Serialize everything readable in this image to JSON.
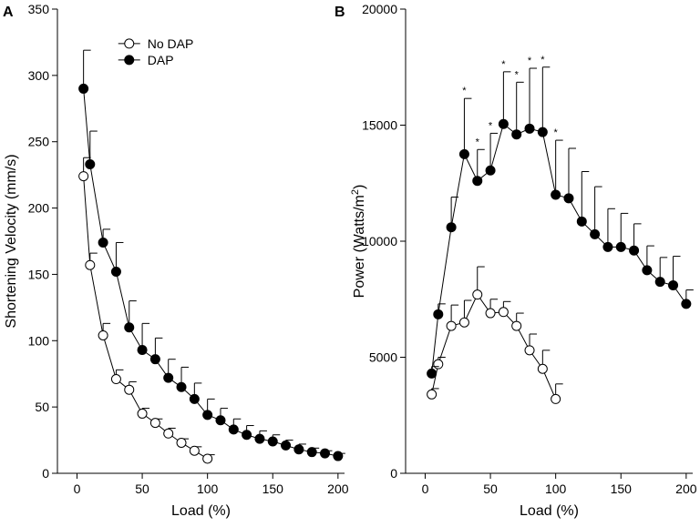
{
  "chart_data": [
    {
      "panel": "A",
      "type": "line",
      "xlabel": "Load (%)",
      "ylabel": "Shortening Velocity (mm/s)",
      "xlim": [
        -15,
        205
      ],
      "ylim": [
        0,
        350
      ],
      "xticks": [
        0,
        50,
        100,
        150,
        200
      ],
      "yticks": [
        0,
        50,
        100,
        150,
        200,
        250,
        300,
        350
      ],
      "legend": {
        "placement": "top-right",
        "entries": [
          "No DAP",
          "DAP"
        ]
      },
      "series": [
        {
          "name": "No DAP",
          "marker": "open-circle",
          "x": [
            5,
            10,
            20,
            30,
            40,
            50,
            60,
            70,
            80,
            90,
            100
          ],
          "y": [
            224,
            157,
            104,
            71,
            63,
            45,
            38,
            30,
            23,
            17,
            11
          ],
          "error": [
            14,
            9,
            9,
            7,
            6,
            4,
            3,
            4,
            3,
            3,
            3
          ]
        },
        {
          "name": "DAP",
          "marker": "filled-circle",
          "x": [
            5,
            10,
            20,
            30,
            40,
            50,
            60,
            70,
            80,
            90,
            100,
            110,
            120,
            130,
            140,
            150,
            160,
            170,
            180,
            190,
            200
          ],
          "y": [
            290,
            233,
            174,
            152,
            110,
            93,
            86,
            72,
            65,
            56,
            44,
            40,
            33,
            29,
            26,
            24,
            21,
            18,
            16,
            15,
            13
          ],
          "error": [
            29,
            25,
            10,
            22,
            20,
            20,
            16,
            14,
            15,
            12,
            12,
            9,
            8,
            7,
            6,
            5,
            4,
            4,
            3,
            2,
            2
          ]
        }
      ]
    },
    {
      "panel": "B",
      "type": "line",
      "xlabel": "Load (%)",
      "ylabel": "Power (Watts/m",
      "ylabel_superscript": "2",
      "ylabel_close": ")",
      "xlim": [
        -15,
        205
      ],
      "ylim": [
        0,
        20000
      ],
      "xticks": [
        0,
        50,
        100,
        150,
        200
      ],
      "yticks": [
        0,
        5000,
        10000,
        15000,
        20000
      ],
      "significance_marker": "*",
      "series": [
        {
          "name": "No DAP",
          "marker": "open-circle",
          "x": [
            5,
            10,
            20,
            30,
            40,
            50,
            60,
            70,
            80,
            90,
            100
          ],
          "y": [
            3400,
            4700,
            6350,
            6500,
            7700,
            6900,
            6950,
            6350,
            5300,
            4500,
            3200
          ],
          "error": [
            250,
            300,
            900,
            950,
            1200,
            600,
            450,
            550,
            700,
            800,
            650
          ]
        },
        {
          "name": "DAP",
          "marker": "filled-circle",
          "x": [
            5,
            10,
            20,
            30,
            40,
            50,
            60,
            70,
            80,
            90,
            100,
            110,
            120,
            130,
            140,
            150,
            160,
            170,
            180,
            190,
            200
          ],
          "y": [
            4300,
            6850,
            10600,
            13750,
            12600,
            13050,
            15050,
            14600,
            14850,
            14700,
            12000,
            11850,
            10850,
            10300,
            9750,
            9750,
            9600,
            8750,
            8250,
            8100,
            7300
          ],
          "error": [
            300,
            450,
            1300,
            2400,
            1350,
            1600,
            2250,
            2250,
            2600,
            2800,
            2350,
            2150,
            2150,
            2050,
            1650,
            1450,
            1150,
            1050,
            1050,
            1250,
            600
          ],
          "significant": [
            false,
            false,
            false,
            true,
            true,
            true,
            true,
            true,
            true,
            true,
            true,
            false,
            false,
            false,
            false,
            false,
            false,
            false,
            false,
            false,
            false
          ]
        }
      ]
    }
  ]
}
